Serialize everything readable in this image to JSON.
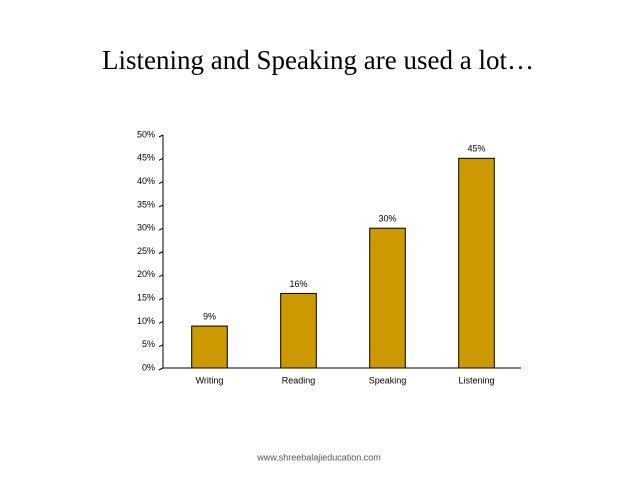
{
  "chart_data": {
    "type": "bar",
    "title": "Listening and Speaking are used a lot…",
    "categories": [
      "Writing",
      "Reading",
      "Speaking",
      "Listening"
    ],
    "values": [
      9,
      16,
      30,
      45
    ],
    "value_labels": [
      "9%",
      "16%",
      "30%",
      "45%"
    ],
    "color": "#cc9900",
    "ylim": [
      0,
      50
    ],
    "yticks": [
      {
        "value": 0,
        "label": "0%"
      },
      {
        "value": 5,
        "label": "5%"
      },
      {
        "value": 10,
        "label": "10%"
      },
      {
        "value": 15,
        "label": "15%"
      },
      {
        "value": 20,
        "label": "20%"
      },
      {
        "value": 25,
        "label": "25%"
      },
      {
        "value": 30,
        "label": "30%"
      },
      {
        "value": 35,
        "label": "35%"
      },
      {
        "value": 40,
        "label": "40%"
      },
      {
        "value": 45,
        "label": "45%"
      },
      {
        "value": 50,
        "label": "50%"
      }
    ],
    "grid": false
  },
  "footer": "www.shreebalajieducation.com"
}
